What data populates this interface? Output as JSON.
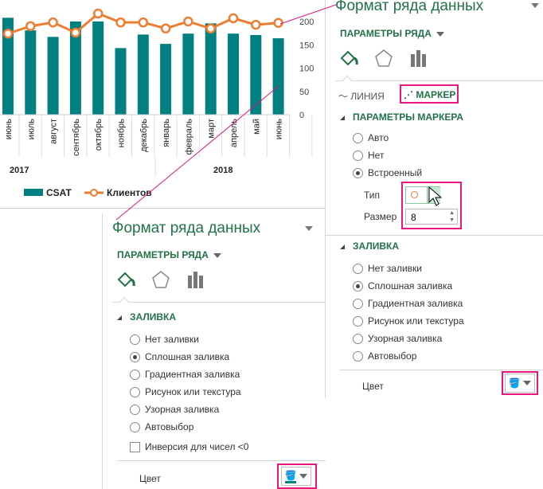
{
  "chart_data": {
    "type": "bar+line",
    "categories": [
      "июнь",
      "июль",
      "август",
      "сентябрь",
      "октябрь",
      "ноябрь",
      "декабрь",
      "январь",
      "февраль",
      "март",
      "апрель",
      "май",
      "июнь"
    ],
    "groups": [
      {
        "label": "2017",
        "from": 0,
        "to": 6
      },
      {
        "label": "2018",
        "from": 7,
        "to": 12
      }
    ],
    "series": [
      {
        "name": "CSAT",
        "type": "bar",
        "color": "#008080",
        "values": [
          208,
          181,
          167,
          200,
          200,
          143,
          172,
          152,
          174,
          196,
          174,
          171,
          164
        ]
      },
      {
        "name": "Клиентов",
        "type": "line",
        "color": "#ed7d31",
        "values": [
          174,
          190,
          198,
          176,
          217,
          198,
          198,
          185,
          200,
          185,
          207,
          193,
          197
        ]
      }
    ],
    "y_ticks": [
      "0",
      "50",
      "100",
      "150",
      "200"
    ],
    "ylim": [
      0,
      200
    ],
    "legend": "bottom-left"
  },
  "right_pane": {
    "title": "Формат ряда данных",
    "series_options": "ПАРАМЕТРЫ РЯДА",
    "tab_line": "ЛИНИЯ",
    "tab_marker": "МАРКЕР",
    "marker_section": "ПАРАМЕТРЫ МАРКЕРА",
    "marker_options": [
      {
        "label": "Авто",
        "selected": false
      },
      {
        "label": "Нет",
        "selected": false
      },
      {
        "label": "Встроенный",
        "selected": true
      }
    ],
    "type_label": "Тип",
    "size_label": "Размер",
    "size_value": "8",
    "fill_section": "ЗАЛИВКА",
    "fill_options": [
      {
        "label": "Нет заливки",
        "selected": false
      },
      {
        "label": "Сплошная заливка",
        "selected": true
      },
      {
        "label": "Градиентная заливка",
        "selected": false
      },
      {
        "label": "Рисунок или текстура",
        "selected": false
      },
      {
        "label": "Узорная заливка",
        "selected": false
      },
      {
        "label": "Автовыбор",
        "selected": false
      }
    ],
    "color_label": "Цвет"
  },
  "left_pane": {
    "title": "Формат ряда данных",
    "series_options": "ПАРАМЕТРЫ РЯДА",
    "fill_section": "ЗАЛИВКА",
    "fill_options": [
      {
        "label": "Нет заливки",
        "selected": false
      },
      {
        "label": "Сплошная заливка",
        "selected": true
      },
      {
        "label": "Градиентная заливка",
        "selected": false
      },
      {
        "label": "Рисунок или текстура",
        "selected": false
      },
      {
        "label": "Узорная заливка",
        "selected": false
      },
      {
        "label": "Автовыбор",
        "selected": false
      }
    ],
    "invert_label": "Инверсия для чисел <0",
    "color_label": "Цвет"
  },
  "colors": {
    "accent": "#217346",
    "highlight": "#e8177e"
  }
}
